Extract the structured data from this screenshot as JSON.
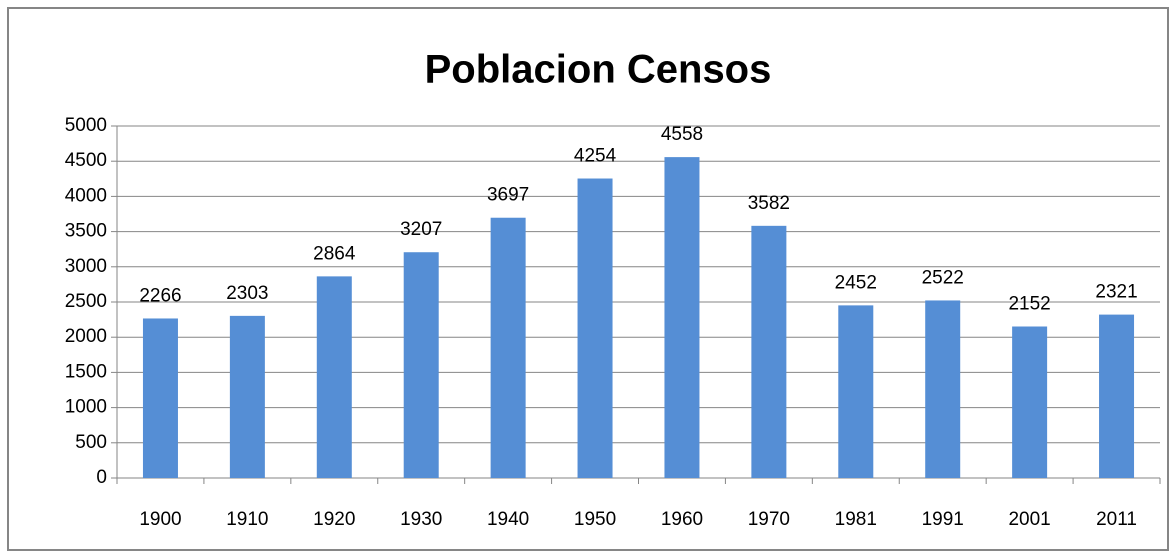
{
  "chart_data": {
    "type": "bar",
    "title": "Poblacion Censos",
    "categories": [
      "1900",
      "1910",
      "1920",
      "1930",
      "1940",
      "1950",
      "1960",
      "1970",
      "1981",
      "1991",
      "2001",
      "2011"
    ],
    "values": [
      2266,
      2303,
      2864,
      3207,
      3697,
      4254,
      4558,
      3582,
      2452,
      2522,
      2152,
      2321
    ],
    "color": "#558ed5",
    "ylim": [
      0,
      5000
    ],
    "yticks": [
      0,
      500,
      1000,
      1500,
      2000,
      2500,
      3000,
      3500,
      4000,
      4500,
      5000
    ],
    "grid": true
  }
}
